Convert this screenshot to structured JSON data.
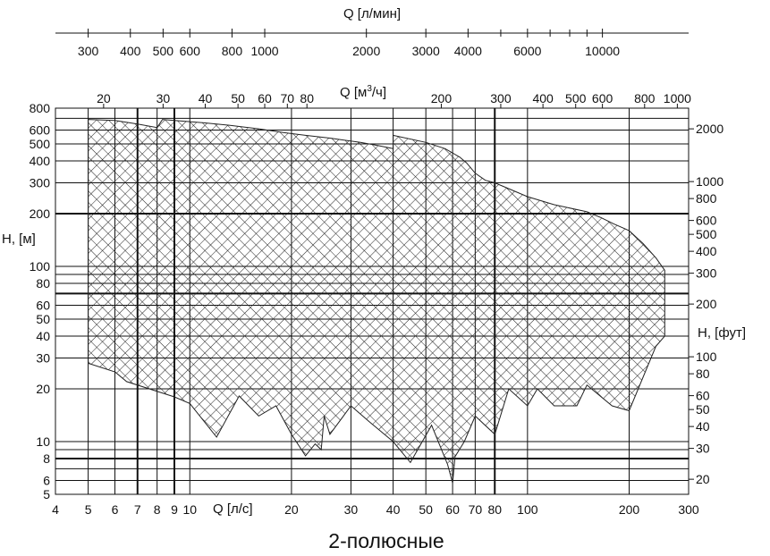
{
  "chart_data": {
    "type": "area",
    "caption": "2-полюсные",
    "scale": "log-log",
    "grid": true,
    "axes": {
      "x_ls": {
        "label": "Q [л/с]",
        "range": [
          4,
          300
        ],
        "ticks": [
          4,
          5,
          6,
          7,
          8,
          9,
          10,
          20,
          30,
          40,
          50,
          60,
          70,
          80,
          100,
          200,
          300
        ],
        "tick_labels": [
          "4",
          "5",
          "6",
          "7",
          "8",
          "9",
          "10",
          "20",
          "30",
          "40",
          "50",
          "60",
          "70",
          "80",
          "100",
          "200",
          "300"
        ]
      },
      "x_m3h": {
        "label": "Q [м³/ч]",
        "label_base": "Q [м",
        "label_sup": "3",
        "label_tail": "/ч]",
        "ticks": [
          20,
          30,
          40,
          50,
          60,
          70,
          80,
          200,
          300,
          400,
          500,
          600,
          800,
          1000
        ],
        "tick_labels": [
          "20",
          "30",
          "40",
          "50",
          "60",
          "70",
          "80",
          "200",
          "300",
          "400",
          "500",
          "600",
          "800",
          "1000"
        ]
      },
      "x_lmin": {
        "label": "Q [л/мин]",
        "ticks": [
          300,
          400,
          500,
          600,
          800,
          1000,
          2000,
          3000,
          4000,
          6000,
          10000
        ],
        "tick_labels": [
          "300",
          "400",
          "500",
          "600",
          "800",
          "1000",
          "2000",
          "3000",
          "4000",
          "6000",
          "10000"
        ]
      },
      "y_m": {
        "label": "H, [м]",
        "range": [
          5,
          800
        ],
        "ticks": [
          5,
          6,
          8,
          10,
          20,
          30,
          40,
          50,
          60,
          80,
          100,
          200,
          300,
          400,
          500,
          600,
          800
        ],
        "tick_labels": [
          "5",
          "6",
          "8",
          "10",
          "20",
          "30",
          "40",
          "50",
          "60",
          "80",
          "100",
          "200",
          "300",
          "400",
          "500",
          "600",
          "800"
        ]
      },
      "y_ft": {
        "label": "H, [фут]",
        "ticks": [
          20,
          30,
          40,
          50,
          60,
          80,
          100,
          200,
          300,
          400,
          500,
          600,
          800,
          1000,
          2000
        ],
        "tick_labels": [
          "20",
          "30",
          "40",
          "50",
          "60",
          "80",
          "100",
          "200",
          "300",
          "400",
          "500",
          "600",
          "800",
          "1000",
          "2000"
        ]
      }
    },
    "envelope": {
      "units": {
        "x": "л/с",
        "y": "м"
      },
      "upper": [
        [
          5,
          690
        ],
        [
          6,
          680
        ],
        [
          7,
          650
        ],
        [
          8,
          620
        ],
        [
          8.3,
          690
        ],
        [
          9,
          680
        ],
        [
          11,
          660
        ],
        [
          13,
          640
        ],
        [
          16,
          610
        ],
        [
          19,
          580
        ],
        [
          22,
          560
        ],
        [
          26,
          540
        ],
        [
          32,
          510
        ],
        [
          36,
          490
        ],
        [
          40,
          470
        ],
        [
          40,
          560
        ],
        [
          50,
          510
        ],
        [
          57,
          470
        ],
        [
          63,
          420
        ],
        [
          66,
          390
        ],
        [
          70,
          340
        ],
        [
          75,
          310
        ],
        [
          80,
          300
        ],
        [
          100,
          250
        ],
        [
          120,
          225
        ],
        [
          150,
          205
        ],
        [
          165,
          190
        ],
        [
          180,
          175
        ],
        [
          200,
          160
        ],
        [
          220,
          135
        ],
        [
          240,
          112
        ],
        [
          255,
          95
        ]
      ],
      "lower": [
        [
          255,
          65
        ],
        [
          255,
          40
        ],
        [
          240,
          35
        ],
        [
          200,
          15
        ],
        [
          178,
          16
        ],
        [
          150,
          21
        ],
        [
          140,
          16
        ],
        [
          120,
          16
        ],
        [
          107,
          20
        ],
        [
          100,
          16
        ],
        [
          88,
          20
        ],
        [
          80,
          11
        ],
        [
          70,
          14
        ],
        [
          65,
          10
        ],
        [
          61,
          8.2
        ],
        [
          60,
          5.8
        ],
        [
          58,
          7.4
        ],
        [
          52,
          12.4
        ],
        [
          45,
          7.6
        ],
        [
          40,
          10
        ],
        [
          34,
          13
        ],
        [
          30,
          16
        ],
        [
          26,
          11
        ],
        [
          25,
          14
        ],
        [
          24.5,
          9
        ],
        [
          23.5,
          9.7
        ],
        [
          22,
          8.3
        ],
        [
          20,
          11
        ],
        [
          18,
          16
        ],
        [
          16,
          14
        ],
        [
          14,
          18.2
        ],
        [
          12,
          10.6
        ],
        [
          10,
          16.5
        ],
        [
          9,
          18
        ],
        [
          6.5,
          22
        ],
        [
          6,
          25
        ],
        [
          5,
          28
        ],
        [
          5,
          200
        ]
      ]
    }
  }
}
